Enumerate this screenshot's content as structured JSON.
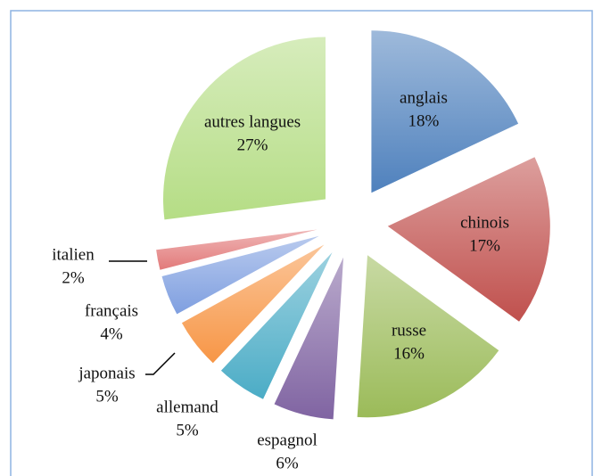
{
  "chart_data": {
    "type": "pie",
    "categories": [
      "anglais",
      "chinois",
      "russe",
      "espagnol",
      "allemand",
      "japonais",
      "français",
      "italien",
      "autres langues"
    ],
    "values": [
      18,
      17,
      16,
      6,
      5,
      5,
      4,
      2,
      27
    ],
    "value_labels": [
      "18%",
      "17%",
      "16%",
      "6%",
      "5%",
      "5%",
      "4%",
      "2%",
      "27%"
    ],
    "colors": [
      "#4f81bd",
      "#c0504d",
      "#9bbb59",
      "#8064a2",
      "#4bacc6",
      "#f79646",
      "#7f9fe0",
      "#e27a7a",
      "#b5dd85"
    ]
  }
}
